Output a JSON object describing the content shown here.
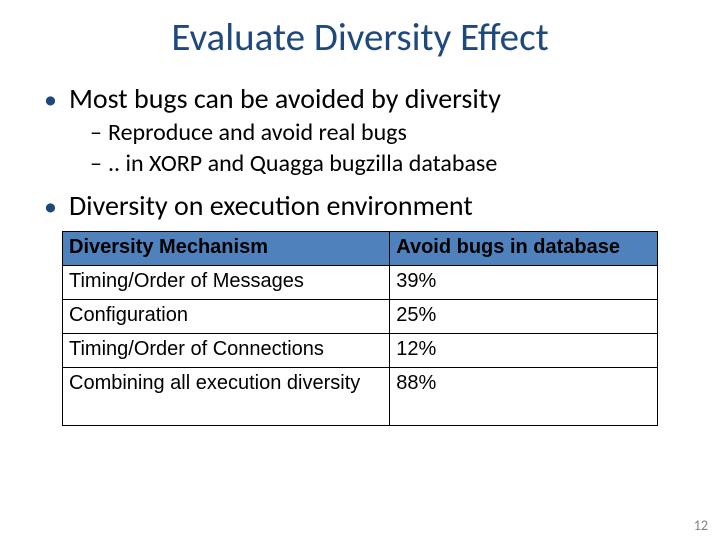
{
  "title": "Evaluate Diversity Effect",
  "bullets": {
    "b1": "Most bugs can be avoided by diversity",
    "b1_1": "Reproduce and avoid real bugs",
    "b1_2": ".. in XORP and Quagga bugzilla database",
    "b2": "Diversity on execution environment"
  },
  "table": {
    "header": {
      "col1": "Diversity Mechanism",
      "col2": "Avoid bugs in database"
    },
    "rows": [
      {
        "c1": "Timing/Order of Messages",
        "c2": "39%"
      },
      {
        "c1": "Configuration",
        "c2": "25%"
      },
      {
        "c1": "Timing/Order of Connections",
        "c2": "12%"
      },
      {
        "c1": "Combining all execution diversity",
        "c2": "88%"
      }
    ]
  },
  "page_number": "12",
  "colors": {
    "title": "#1f497d",
    "bullet_dot": "#1f497d",
    "table_header_bg": "#4f81bd",
    "text": "#000000",
    "background": "#ffffff",
    "page_num": "#7f7f7f"
  },
  "fonts": {
    "title_size": 39,
    "l1_size": 28,
    "l2_size": 24,
    "table_size": 20
  }
}
